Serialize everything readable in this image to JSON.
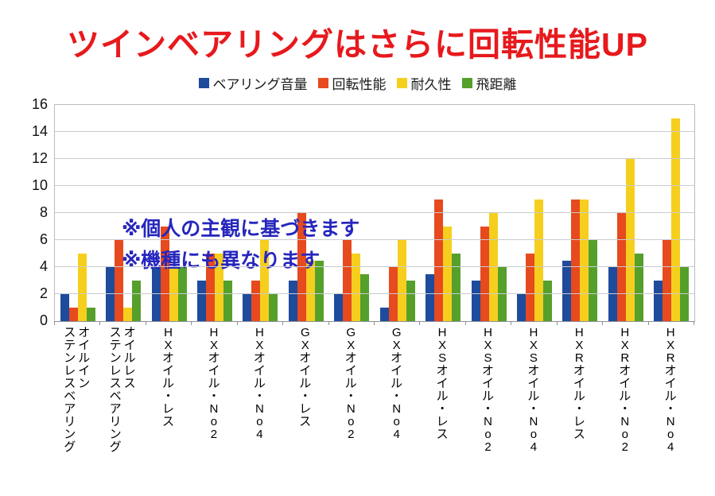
{
  "title": {
    "text": "ツインベアリングはさらに回転性能UP",
    "color": "#e7191d"
  },
  "annotations": {
    "line1": "※個人の主観に基づきます",
    "line2": "※機種にも異なります",
    "color": "#2626be"
  },
  "chart_data": {
    "type": "bar",
    "title": "ツインベアリングはさらに回転性能UP",
    "categories": [
      "オイルイン\nステンレスベアリング",
      "オイルレス\nステンレスベアリング",
      "HXオイル・レス",
      "HXオイル・No2",
      "HXオイル・No4",
      "GXオイル・レス",
      "GXオイル・No2",
      "GXオイル・No4",
      "HXSオイル・レス",
      "HXSオイル・No2",
      "HXSオイル・No4",
      "HXRオイル・レス",
      "HXRオイル・No2",
      "HXRオイル・No4"
    ],
    "series": [
      {
        "name": "ベアリング音量",
        "color": "#1e4b9b",
        "values": [
          2,
          4,
          4,
          3,
          2,
          3,
          2,
          1,
          3.5,
          3,
          2,
          4.5,
          4,
          3
        ]
      },
      {
        "name": "回転性能",
        "color": "#e64a1e",
        "values": [
          1,
          6,
          7,
          5,
          3,
          8,
          6,
          4,
          9,
          7,
          5,
          9,
          8,
          6
        ]
      },
      {
        "name": "耐久性",
        "color": "#f6cf1e",
        "values": [
          5,
          1,
          4,
          5,
          6,
          4.5,
          5,
          6,
          7,
          8,
          9,
          9,
          12,
          15
        ]
      },
      {
        "name": "飛距離",
        "color": "#55a02b",
        "values": [
          1,
          3,
          4,
          3,
          2,
          4.5,
          3.5,
          3,
          5,
          4,
          3,
          6,
          5,
          4
        ]
      }
    ],
    "xlabel": "",
    "ylabel": "",
    "ylim": [
      0,
      16
    ],
    "ytick_step": 2,
    "grid": true,
    "legend_position": "top"
  }
}
